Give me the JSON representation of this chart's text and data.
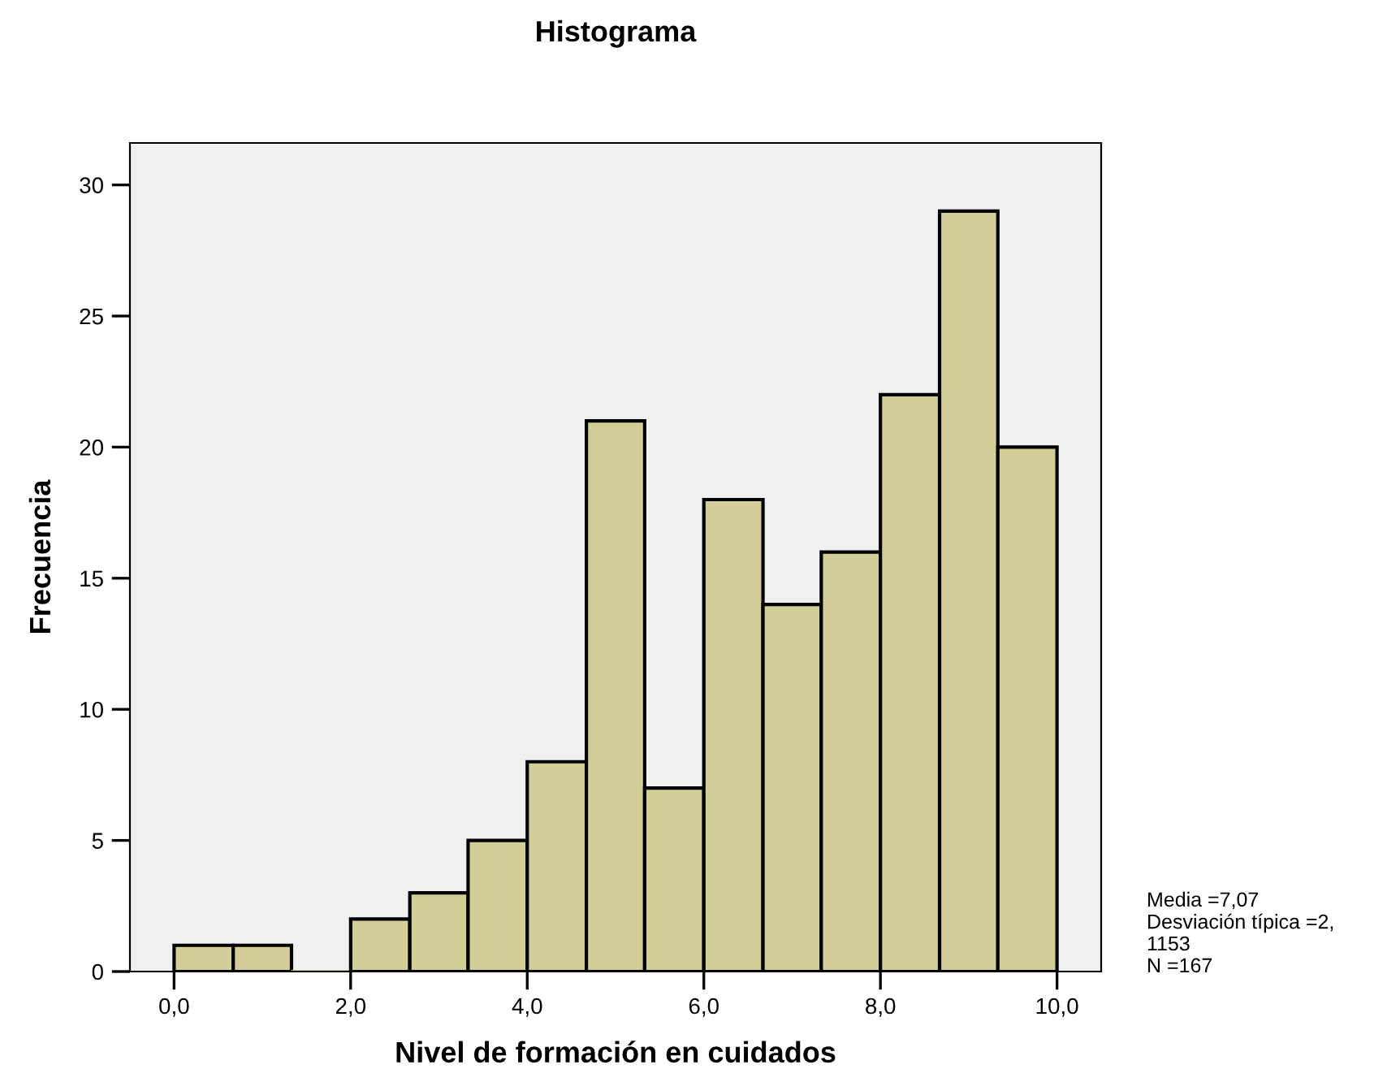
{
  "chart_data": {
    "type": "histogram",
    "title": "Histograma",
    "xlabel": "Nivel de formación en cuidados",
    "ylabel": "Frecuencia",
    "bins": [
      0,
      0.67,
      1.33,
      2,
      2.67,
      3.33,
      4,
      4.67,
      5.33,
      6,
      6.67,
      7.33,
      8,
      8.67,
      9.33,
      10
    ],
    "values": [
      1,
      1,
      0,
      2,
      3,
      5,
      8,
      21,
      7,
      18,
      14,
      16,
      22,
      29,
      20
    ],
    "color": "#d3ce97",
    "xlim": [
      -0.5,
      10.5
    ],
    "ylim": [
      0,
      31.6
    ],
    "xticks": [
      {
        "value": 0,
        "label": "0,0"
      },
      {
        "value": 2,
        "label": "2,0"
      },
      {
        "value": 4,
        "label": "4,0"
      },
      {
        "value": 6,
        "label": "6,0"
      },
      {
        "value": 8,
        "label": "8,0"
      },
      {
        "value": 10,
        "label": "10,0"
      }
    ],
    "yticks": [
      0,
      5,
      10,
      15,
      20,
      25,
      30
    ],
    "grid": false,
    "legend": false,
    "annotations": [
      "Media =7,07\nDesviación típica =2,\n1153\nN =167"
    ]
  }
}
